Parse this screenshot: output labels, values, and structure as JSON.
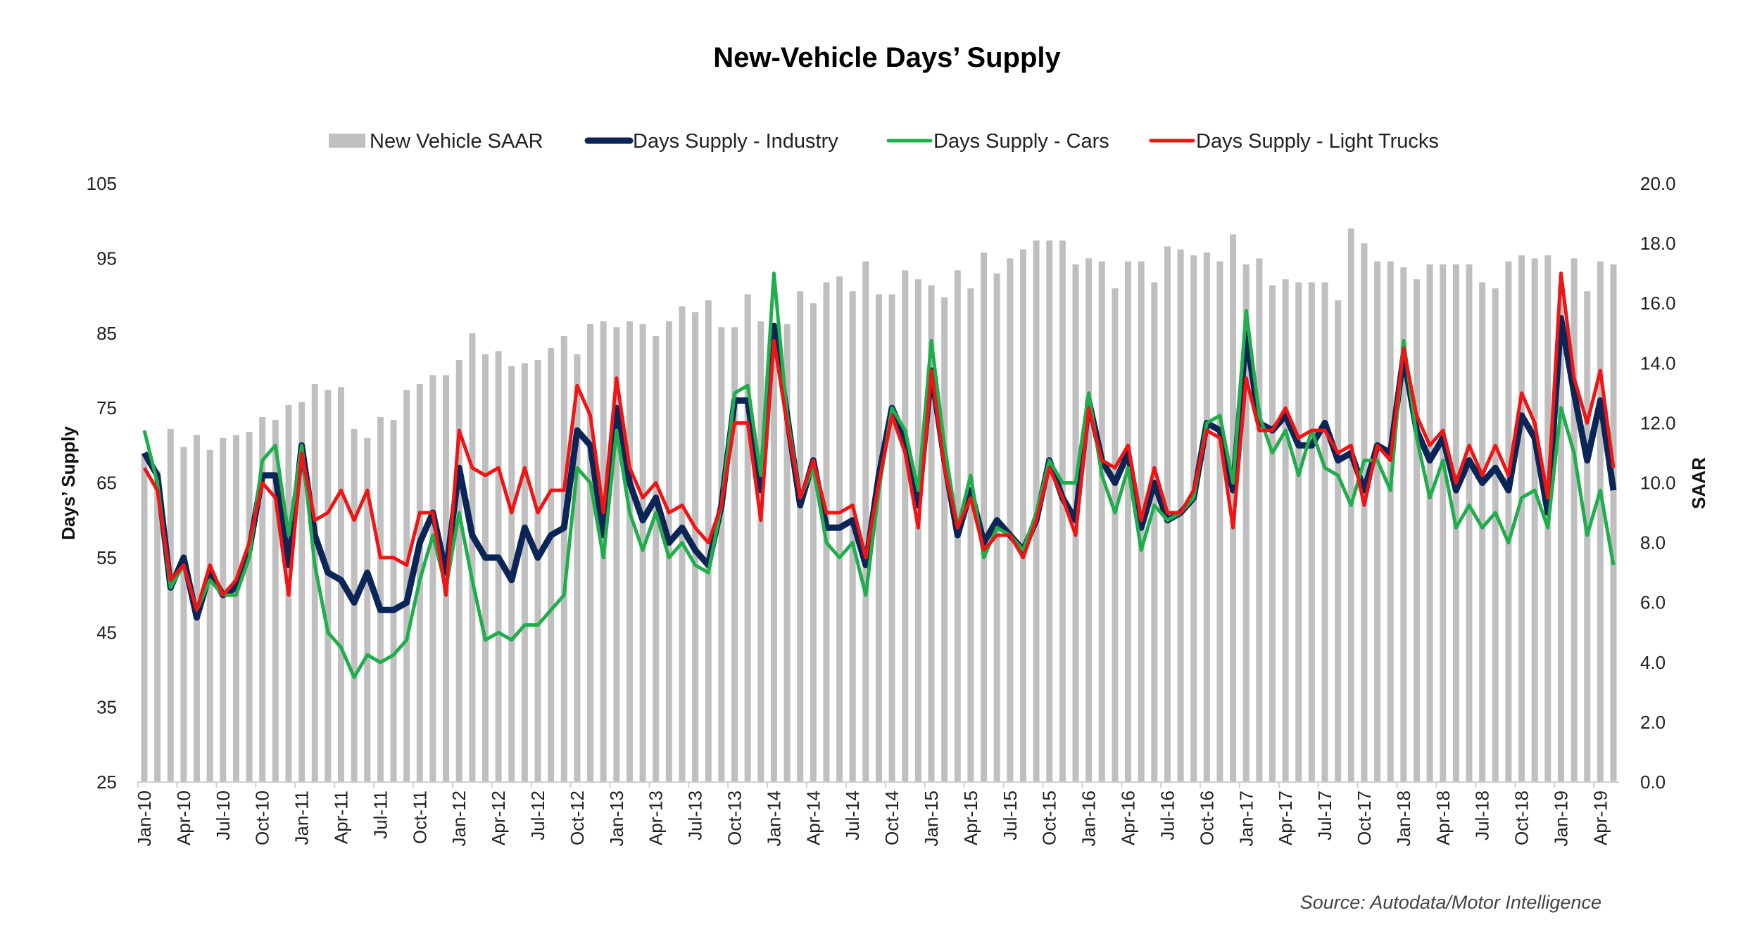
{
  "chart_data": {
    "type": "bar+line",
    "title": "New-Vehicle Days’ Supply",
    "source": "Source: Autodata/Motor Intelligence",
    "ylabel": "Days’ Supply",
    "y2label": "SAAR",
    "ylim": [
      25,
      105
    ],
    "yticks": [
      "25",
      "35",
      "45",
      "55",
      "65",
      "75",
      "85",
      "95",
      "105"
    ],
    "y2lim": [
      0,
      20
    ],
    "y2ticks": [
      "0.0",
      "2.0",
      "4.0",
      "6.0",
      "8.0",
      "10.0",
      "12.0",
      "14.0",
      "16.0",
      "18.0",
      "20.0"
    ],
    "legend_position": "top",
    "grid": false,
    "x_start": "Jan-10",
    "x_end": "May-19",
    "xtick_labels": [
      "Jan-10",
      "Apr-10",
      "Jul-10",
      "Oct-10",
      "Jan-11",
      "Apr-11",
      "Jul-11",
      "Oct-11",
      "Jan-12",
      "Apr-12",
      "Jul-12",
      "Oct-12",
      "Jan-13",
      "Apr-13",
      "Jul-13",
      "Oct-13",
      "Jan-14",
      "Apr-14",
      "Jul-14",
      "Oct-14",
      "Jan-15",
      "Apr-15",
      "Jul-15",
      "Oct-15",
      "Jan-16",
      "Apr-16",
      "Jul-16",
      "Oct-16",
      "Jan-17",
      "Apr-17",
      "Jul-17",
      "Oct-17",
      "Jan-18",
      "Apr-18",
      "Jul-18",
      "Oct-18",
      "Jan-19",
      "Apr-19"
    ],
    "bars": {
      "name": "New Vehicle SAAR",
      "color": "#bfbfbf",
      "axis": "right",
      "values": [
        11.0,
        10.4,
        11.8,
        11.2,
        11.6,
        11.1,
        11.5,
        11.6,
        11.7,
        12.2,
        12.1,
        12.6,
        12.7,
        13.3,
        13.1,
        13.2,
        11.8,
        11.5,
        12.2,
        12.1,
        13.1,
        13.3,
        13.6,
        13.6,
        14.1,
        15.0,
        14.3,
        14.4,
        13.9,
        14.0,
        14.1,
        14.5,
        14.9,
        14.3,
        15.3,
        15.4,
        15.2,
        15.4,
        15.3,
        14.9,
        15.4,
        15.9,
        15.7,
        16.1,
        15.2,
        15.2,
        16.3,
        15.4,
        15.2,
        15.3,
        16.4,
        16.0,
        16.7,
        16.9,
        16.4,
        17.4,
        16.3,
        16.3,
        17.1,
        16.8,
        16.6,
        16.2,
        17.1,
        16.5,
        17.7,
        17.0,
        17.5,
        17.8,
        18.1,
        18.1,
        18.1,
        17.3,
        17.5,
        17.4,
        16.5,
        17.4,
        17.4,
        16.7,
        17.9,
        17.8,
        17.6,
        17.7,
        17.4,
        18.3,
        17.3,
        17.5,
        16.6,
        16.8,
        16.7,
        16.7,
        16.7,
        16.1,
        18.5,
        18.0,
        17.4,
        17.4,
        17.2,
        16.8,
        17.3,
        17.3,
        17.3,
        17.3,
        16.7,
        16.5,
        17.4,
        17.6,
        17.5,
        17.6,
        16.6,
        17.5,
        16.4,
        17.4,
        17.3
      ]
    },
    "series": [
      {
        "name": "Days Supply - Industry",
        "color": "#0b2556",
        "width": 9,
        "values": [
          69,
          66,
          51,
          55,
          47,
          53,
          50,
          51,
          56,
          66,
          66,
          54,
          70,
          58,
          53,
          52,
          49,
          53,
          48,
          48,
          49,
          57,
          61,
          53,
          67,
          58,
          55,
          55,
          52,
          59,
          55,
          58,
          59,
          72,
          70,
          58,
          75,
          65,
          60,
          63,
          57,
          59,
          56,
          54,
          62,
          76,
          76,
          64,
          86,
          74,
          62,
          68,
          59,
          59,
          60,
          54,
          66,
          75,
          71,
          62,
          80,
          68,
          58,
          64,
          57,
          60,
          58,
          56,
          60,
          68,
          63,
          60,
          76,
          68,
          65,
          69,
          59,
          65,
          60,
          61,
          63,
          73,
          72,
          64,
          85,
          73,
          72,
          74,
          70,
          70,
          73,
          68,
          69,
          64,
          70,
          69,
          82,
          72,
          68,
          71,
          64,
          68,
          65,
          67,
          64,
          74,
          71,
          61,
          87,
          77,
          68,
          76,
          64
        ]
      },
      {
        "name": "Days Supply - Cars",
        "color": "#1fae4b",
        "width": 5,
        "values": [
          72,
          65,
          51,
          54,
          48,
          52,
          50,
          50,
          55,
          68,
          70,
          58,
          70,
          54,
          45,
          43,
          39,
          42,
          41,
          42,
          44,
          52,
          58,
          51,
          61,
          52,
          44,
          45,
          44,
          46,
          46,
          48,
          50,
          67,
          65,
          55,
          72,
          61,
          56,
          61,
          55,
          57,
          54,
          53,
          62,
          77,
          78,
          66,
          93,
          74,
          63,
          67,
          57,
          55,
          57,
          50,
          64,
          75,
          72,
          64,
          84,
          70,
          59,
          66,
          55,
          59,
          58,
          56,
          61,
          68,
          65,
          65,
          77,
          66,
          61,
          67,
          56,
          62,
          60,
          61,
          63,
          73,
          74,
          65,
          88,
          74,
          69,
          72,
          66,
          72,
          67,
          66,
          62,
          68,
          68,
          64,
          84,
          71,
          63,
          68,
          59,
          62,
          59,
          61,
          57,
          63,
          64,
          59,
          75,
          69,
          58,
          64,
          54
        ]
      },
      {
        "name": "Days Supply - Light Trucks",
        "color": "#f01414",
        "width": 5,
        "values": [
          67,
          64,
          52,
          54,
          48,
          54,
          50,
          52,
          57,
          65,
          63,
          50,
          69,
          60,
          61,
          64,
          60,
          64,
          55,
          55,
          54,
          61,
          61,
          50,
          72,
          67,
          66,
          67,
          61,
          67,
          61,
          64,
          64,
          78,
          74,
          61,
          79,
          67,
          63,
          65,
          61,
          62,
          59,
          57,
          62,
          73,
          73,
          60,
          84,
          73,
          63,
          68,
          61,
          61,
          62,
          55,
          65,
          74,
          69,
          59,
          80,
          67,
          59,
          63,
          56,
          58,
          58,
          55,
          60,
          67,
          63,
          58,
          75,
          68,
          67,
          70,
          60,
          67,
          61,
          61,
          64,
          72,
          71,
          59,
          79,
          72,
          72,
          75,
          71,
          72,
          72,
          69,
          70,
          62,
          70,
          68,
          83,
          74,
          70,
          72,
          65,
          70,
          66,
          70,
          66,
          77,
          73,
          63,
          93,
          79,
          73,
          80,
          67
        ]
      }
    ]
  }
}
